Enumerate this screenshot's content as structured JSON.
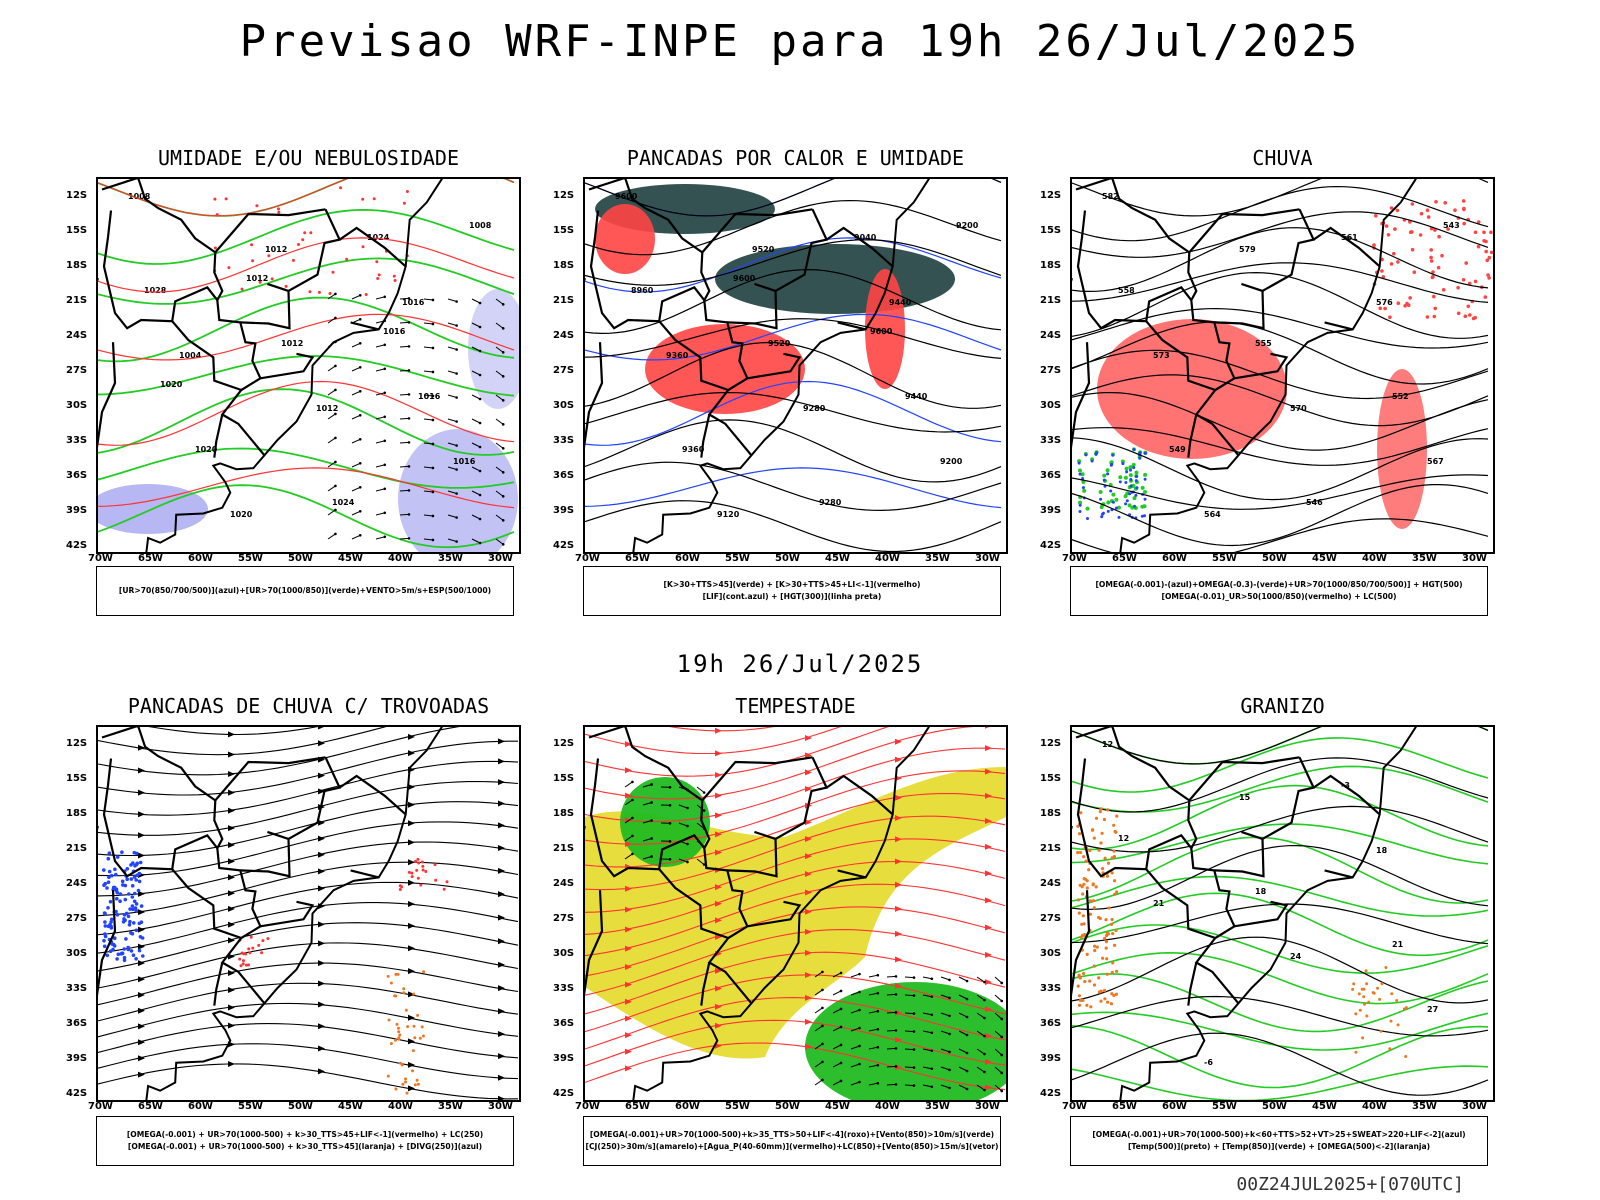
{
  "title": "Previsao WRF-INPE  para 19h 26/Jul/2025",
  "mid_time": "19h 26/Jul/2025",
  "run_stamp": "00Z24JUL2025+[070UTC]",
  "lat_labels": [
    "12S",
    "15S",
    "18S",
    "21S",
    "24S",
    "27S",
    "30S",
    "33S",
    "36S",
    "39S",
    "42S"
  ],
  "lon_labels": [
    "70W",
    "65W",
    "60W",
    "55W",
    "50W",
    "45W",
    "40W",
    "35W",
    "30W"
  ],
  "panels": [
    {
      "title": "UMIDADE E/OU NEBULOSIDADE",
      "legend": [
        "[UR>70(850/700/500)](azul)+[UR>70(1000/850)](verde)+VENTO>5m/s+ESP(500/1000)"
      ]
    },
    {
      "title": "PANCADAS POR CALOR E UMIDADE",
      "legend": [
        "[K>30+TTS>45](verde) + [K>30+TTS>45+LI<-1](vermelho)",
        "[LIF](cont.azul) + [HGT(300)](linha preta)"
      ]
    },
    {
      "title": "CHUVA",
      "legend": [
        "[OMEGA(-0.001)-(azul)+OMEGA(-0.3)-(verde)+UR>70(1000/850/700/500)] + HGT(500)",
        "[OMEGA(-0.01)_UR>50(1000/850)(vermelho) + LC(500)"
      ]
    },
    {
      "title": "PANCADAS DE CHUVA C/ TROVOADAS",
      "legend": [
        "[OMEGA(-0.001) + UR>70(1000-500) + k>30_TTS>45+LIF<-1](vermelho) + LC(250)",
        "[OMEGA(-0.001) + UR>70(1000-500) + k>30_TTS>45](laranja) + [DIVG(250)](azul)"
      ]
    },
    {
      "title": "TEMPESTADE",
      "legend": [
        "[OMEGA(-0.001)+UR>70(1000-500)+k>35_TTS>50+LIF<-4](roxo)+[Vento(850)>10m/s](verde)",
        "[CJ(250)>30m/s](amarelo)+[Agua_P(40-60mm)](vermelho)+LC(850)+[Vento(850)>15m/s](vetor)"
      ]
    },
    {
      "title": "GRANIZO",
      "legend": [
        "[OMEGA(-0.001)+UR>70(1000-500)+k<60+TTS>52+VT>25+SWEAT>220+LIF<-2](azul)",
        "[Temp(500)](preto) + [Temp(850)](verde) + [OMEGA(500)<-2](laranja)"
      ]
    }
  ],
  "contour_labels": {
    "p1": [
      "1008",
      "1012",
      "1016",
      "1004",
      "1012",
      "1016",
      "1020",
      "1024",
      "1028",
      "1012",
      "1016",
      "1020",
      "1024",
      "1008",
      "1012",
      "1016",
      "1020"
    ],
    "p2": [
      "9600",
      "9520",
      "9440",
      "9360",
      "9280",
      "9200",
      "9120",
      "9040",
      "8960",
      "9520",
      "9440",
      "9360",
      "9280",
      "9200",
      "9600",
      "9600"
    ],
    "p3": [
      "582",
      "579",
      "576",
      "573",
      "570",
      "567",
      "564",
      "561",
      "558",
      "555",
      "552",
      "549",
      "546",
      "543"
    ],
    "p6": [
      "12",
      "15",
      "18",
      "21",
      "24",
      "27",
      "-6",
      "-3",
      "12",
      "18",
      "21"
    ]
  }
}
